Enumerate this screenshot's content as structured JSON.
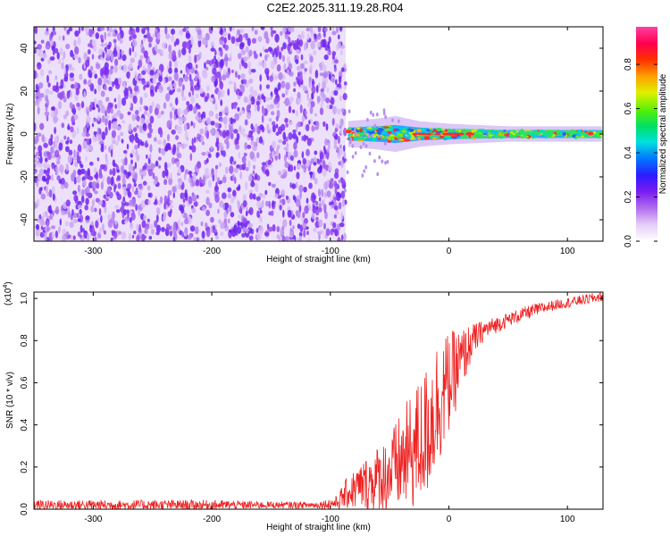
{
  "title": "C2E2.2025.311.19.28.R04",
  "chart_data": [
    {
      "type": "heatmap",
      "name": "spectrogram",
      "xlabel": "Height of straight line (km)",
      "ylabel": "Frequency (Hz)",
      "xlim": [
        -350,
        130
      ],
      "ylim": [
        -50,
        50
      ],
      "xticks": [
        -300,
        -200,
        -100,
        0,
        100
      ],
      "yticks": [
        -40,
        -20,
        0,
        20,
        40
      ],
      "noise_region_x": [
        -350,
        -87
      ],
      "signal_band": {
        "center_freq_hz": 0,
        "points": [
          {
            "x": -85,
            "width_hz": 5
          },
          {
            "x": -60,
            "width_hz": 6
          },
          {
            "x": -45,
            "width_hz": 7
          },
          {
            "x": -25,
            "width_hz": 5
          },
          {
            "x": 0,
            "width_hz": 4
          },
          {
            "x": 50,
            "width_hz": 3
          },
          {
            "x": 130,
            "width_hz": 3
          }
        ]
      },
      "colorbar": {
        "label": "Normalized spectral amplitude",
        "ticks": [
          "0.0",
          "0.2",
          "0.4",
          "0.6",
          "0.8"
        ],
        "range": [
          0,
          0.97
        ],
        "colors": [
          "#ffffff",
          "#e6cdf7",
          "#b06ef0",
          "#7a1cf0",
          "#2a1cff",
          "#0077ff",
          "#00e0e0",
          "#00e060",
          "#5cf000",
          "#e0f000",
          "#ffa000",
          "#ff3000",
          "#ff0050",
          "#ff40a0"
        ]
      }
    },
    {
      "type": "line",
      "name": "snr",
      "xlabel": "Height of straight line (km)",
      "ylabel": "SNR (10 * v/v)",
      "scale_label": "(x10",
      "scale_exponent": "4",
      "scale_close": ")",
      "xlim": [
        -350,
        130
      ],
      "ylim": [
        0,
        1.03
      ],
      "xticks": [
        -300,
        -200,
        -100,
        0,
        100
      ],
      "yticks": [
        "0.0",
        "0.2",
        "0.4",
        "0.6",
        "0.8",
        "1.0"
      ],
      "color": "#ee2222",
      "x": [
        -350,
        -300,
        -250,
        -200,
        -150,
        -110,
        -95,
        -85,
        -70,
        -50,
        -30,
        -20,
        -10,
        0,
        10,
        20,
        30,
        50,
        70,
        90,
        110,
        130
      ],
      "y": [
        0.02,
        0.02,
        0.02,
        0.02,
        0.02,
        0.02,
        0.03,
        0.08,
        0.12,
        0.17,
        0.28,
        0.35,
        0.5,
        0.6,
        0.7,
        0.8,
        0.85,
        0.9,
        0.94,
        0.97,
        0.99,
        1.01
      ],
      "noise_amp": [
        0.015,
        0.015,
        0.015,
        0.015,
        0.01,
        0.01,
        0.02,
        0.05,
        0.08,
        0.12,
        0.18,
        0.2,
        0.2,
        0.15,
        0.1,
        0.05,
        0.03,
        0.02,
        0.02,
        0.015,
        0.015,
        0.015
      ]
    }
  ]
}
